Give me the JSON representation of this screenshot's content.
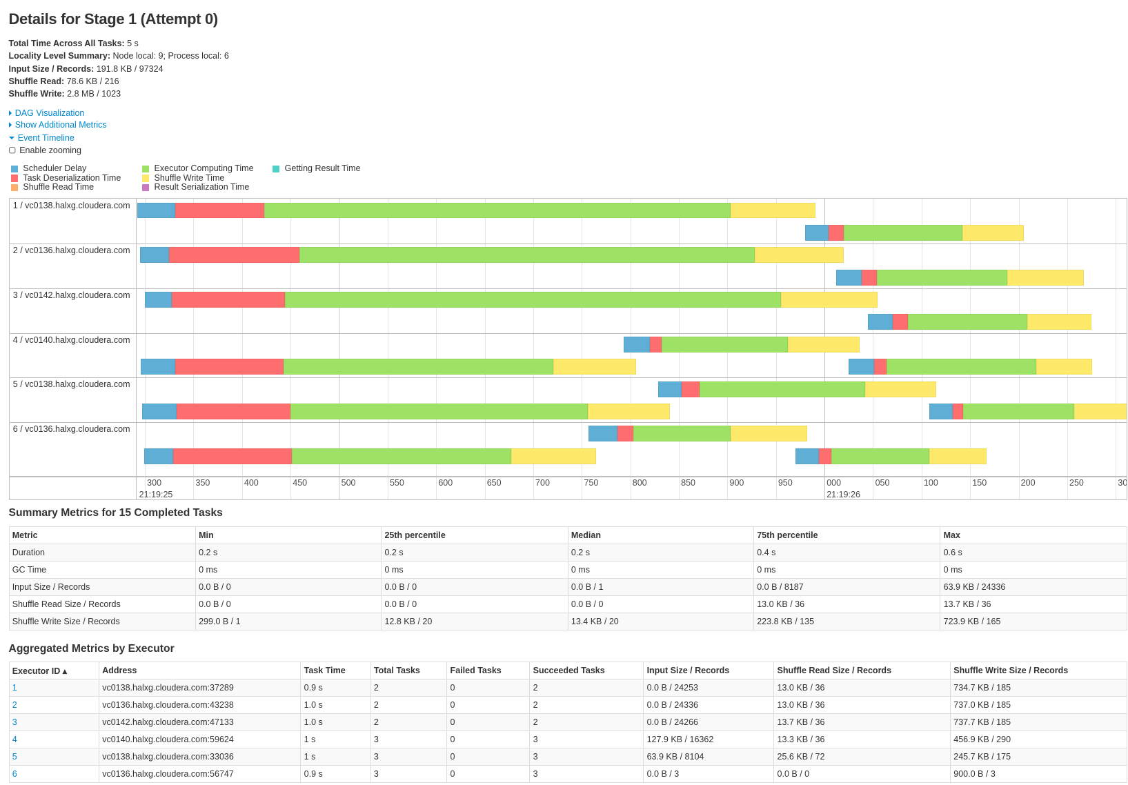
{
  "title": "Details for Stage 1 (Attempt 0)",
  "summary": [
    {
      "label": "Total Time Across All Tasks:",
      "value": "5 s"
    },
    {
      "label": "Locality Level Summary:",
      "value": "Node local: 9; Process local: 6"
    },
    {
      "label": "Input Size / Records:",
      "value": "191.8 KB / 97324"
    },
    {
      "label": "Shuffle Read:",
      "value": "78.6 KB / 216"
    },
    {
      "label": "Shuffle Write:",
      "value": "2.8 MB / 1023"
    }
  ],
  "links": {
    "dag": "DAG Visualization",
    "metrics": "Show Additional Metrics",
    "timeline": "Event Timeline"
  },
  "enable_zooming": {
    "label": "Enable zooming",
    "checked": false
  },
  "legend": [
    {
      "label": "Scheduler Delay",
      "color": "#5eaed5"
    },
    {
      "label": "Task Deserialization Time",
      "color": "#ff6e6e"
    },
    {
      "label": "Shuffle Read Time",
      "color": "#fdae6b"
    },
    {
      "label": "Executor Computing Time",
      "color": "#9de264"
    },
    {
      "label": "Shuffle Write Time",
      "color": "#ffe96a"
    },
    {
      "label": "Result Serialization Time",
      "color": "#c97bbf"
    },
    {
      "label": "Getting Result Time",
      "color": "#4fd1c5"
    }
  ],
  "timeline": {
    "ticks": [
      "300",
      "350",
      "400",
      "450",
      "500",
      "550",
      "600",
      "650",
      "700",
      "750",
      "800",
      "850",
      "900",
      "950",
      "000",
      "050",
      "100",
      "150",
      "200",
      "250",
      "300"
    ],
    "tick_ms": [
      300,
      350,
      400,
      450,
      500,
      550,
      600,
      650,
      700,
      750,
      800,
      850,
      900,
      950,
      1000,
      1050,
      1100,
      1150,
      1200,
      1250,
      1300
    ],
    "dates": [
      {
        "label": "21:19:25",
        "ms": 300
      },
      {
        "label": "21:19:26",
        "ms": 1000
      }
    ],
    "executors": [
      {
        "label": "1 / vc0138.halxg.cloudera.com",
        "tasks": [
          {
            "lane": 0,
            "start": 292,
            "segments": [
              39,
              92,
              480,
              88
            ]
          },
          {
            "lane": 1,
            "start": 980,
            "segments": [
              24,
              16,
              122,
              63
            ]
          }
        ]
      },
      {
        "label": "2 / vc0136.halxg.cloudera.com",
        "tasks": [
          {
            "lane": 0,
            "start": 295,
            "segments": [
              30,
              134,
              469,
              92
            ]
          },
          {
            "lane": 1,
            "start": 1012,
            "segments": [
              26,
              16,
              134,
              79
            ]
          }
        ]
      },
      {
        "label": "3 / vc0142.halxg.cloudera.com",
        "tasks": [
          {
            "lane": 0,
            "start": 300,
            "segments": [
              28,
              116,
              511,
              100
            ]
          },
          {
            "lane": 1,
            "start": 1045,
            "segments": [
              25,
              16,
              123,
              66
            ]
          }
        ]
      },
      {
        "label": "4 / vc0140.halxg.cloudera.com",
        "tasks": [
          {
            "lane": 0,
            "start": 793,
            "segments": [
              27,
              12,
              130,
              74
            ]
          },
          {
            "lane": 1,
            "start": 296,
            "segments": [
              35,
              112,
              278,
              85
            ]
          },
          {
            "lane": 1,
            "start": 1025,
            "segments": [
              26,
              13,
              154,
              58
            ]
          }
        ]
      },
      {
        "label": "5 / vc0138.halxg.cloudera.com",
        "tasks": [
          {
            "lane": 0,
            "start": 829,
            "segments": [
              24,
              18,
              171,
              73
            ]
          },
          {
            "lane": 1,
            "start": 297,
            "segments": [
              36,
              117,
              306,
              85
            ]
          },
          {
            "lane": 1,
            "start": 1108,
            "segments": [
              24,
              11,
              114,
              60
            ]
          }
        ]
      },
      {
        "label": "6 / vc0136.halxg.cloudera.com",
        "tasks": [
          {
            "lane": 0,
            "start": 757,
            "segments": [
              30,
              16,
              100,
              79
            ]
          },
          {
            "lane": 1,
            "start": 299,
            "segments": [
              30,
              122,
              226,
              88
            ]
          },
          {
            "lane": 1,
            "start": 970,
            "segments": [
              24,
              13,
              101,
              59
            ]
          }
        ]
      }
    ]
  },
  "summary_metrics": {
    "title": "Summary Metrics for 15 Completed Tasks",
    "headers": [
      "Metric",
      "Min",
      "25th percentile",
      "Median",
      "75th percentile",
      "Max"
    ],
    "rows": [
      [
        "Duration",
        "0.2 s",
        "0.2 s",
        "0.2 s",
        "0.4 s",
        "0.6 s"
      ],
      [
        "GC Time",
        "0 ms",
        "0 ms",
        "0 ms",
        "0 ms",
        "0 ms"
      ],
      [
        "Input Size / Records",
        "0.0 B / 0",
        "0.0 B / 0",
        "0.0 B / 1",
        "0.0 B / 8187",
        "63.9 KB / 24336"
      ],
      [
        "Shuffle Read Size / Records",
        "0.0 B / 0",
        "0.0 B / 0",
        "0.0 B / 0",
        "13.0 KB / 36",
        "13.7 KB / 36"
      ],
      [
        "Shuffle Write Size / Records",
        "299.0 B / 1",
        "12.8 KB / 20",
        "13.4 KB / 20",
        "223.8 KB / 135",
        "723.9 KB / 165"
      ]
    ]
  },
  "executor_metrics": {
    "title": "Aggregated Metrics by Executor",
    "headers": [
      "Executor ID ▴",
      "Address",
      "Task Time",
      "Total Tasks",
      "Failed Tasks",
      "Succeeded Tasks",
      "Input Size / Records",
      "Shuffle Read Size / Records",
      "Shuffle Write Size / Records"
    ],
    "rows": [
      [
        "1",
        "vc0138.halxg.cloudera.com:37289",
        "0.9 s",
        "2",
        "0",
        "2",
        "0.0 B / 24253",
        "13.0 KB / 36",
        "734.7 KB / 185"
      ],
      [
        "2",
        "vc0136.halxg.cloudera.com:43238",
        "1.0 s",
        "2",
        "0",
        "2",
        "0.0 B / 24336",
        "13.0 KB / 36",
        "737.0 KB / 185"
      ],
      [
        "3",
        "vc0142.halxg.cloudera.com:47133",
        "1.0 s",
        "2",
        "0",
        "2",
        "0.0 B / 24266",
        "13.7 KB / 36",
        "737.7 KB / 185"
      ],
      [
        "4",
        "vc0140.halxg.cloudera.com:59624",
        "1 s",
        "3",
        "0",
        "3",
        "127.9 KB / 16362",
        "13.3 KB / 36",
        "456.9 KB / 290"
      ],
      [
        "5",
        "vc0138.halxg.cloudera.com:33036",
        "1 s",
        "3",
        "0",
        "3",
        "63.9 KB / 8104",
        "25.6 KB / 72",
        "245.7 KB / 175"
      ],
      [
        "6",
        "vc0136.halxg.cloudera.com:56747",
        "0.9 s",
        "3",
        "0",
        "3",
        "0.0 B / 3",
        "0.0 B / 0",
        "900.0 B / 3"
      ]
    ]
  }
}
